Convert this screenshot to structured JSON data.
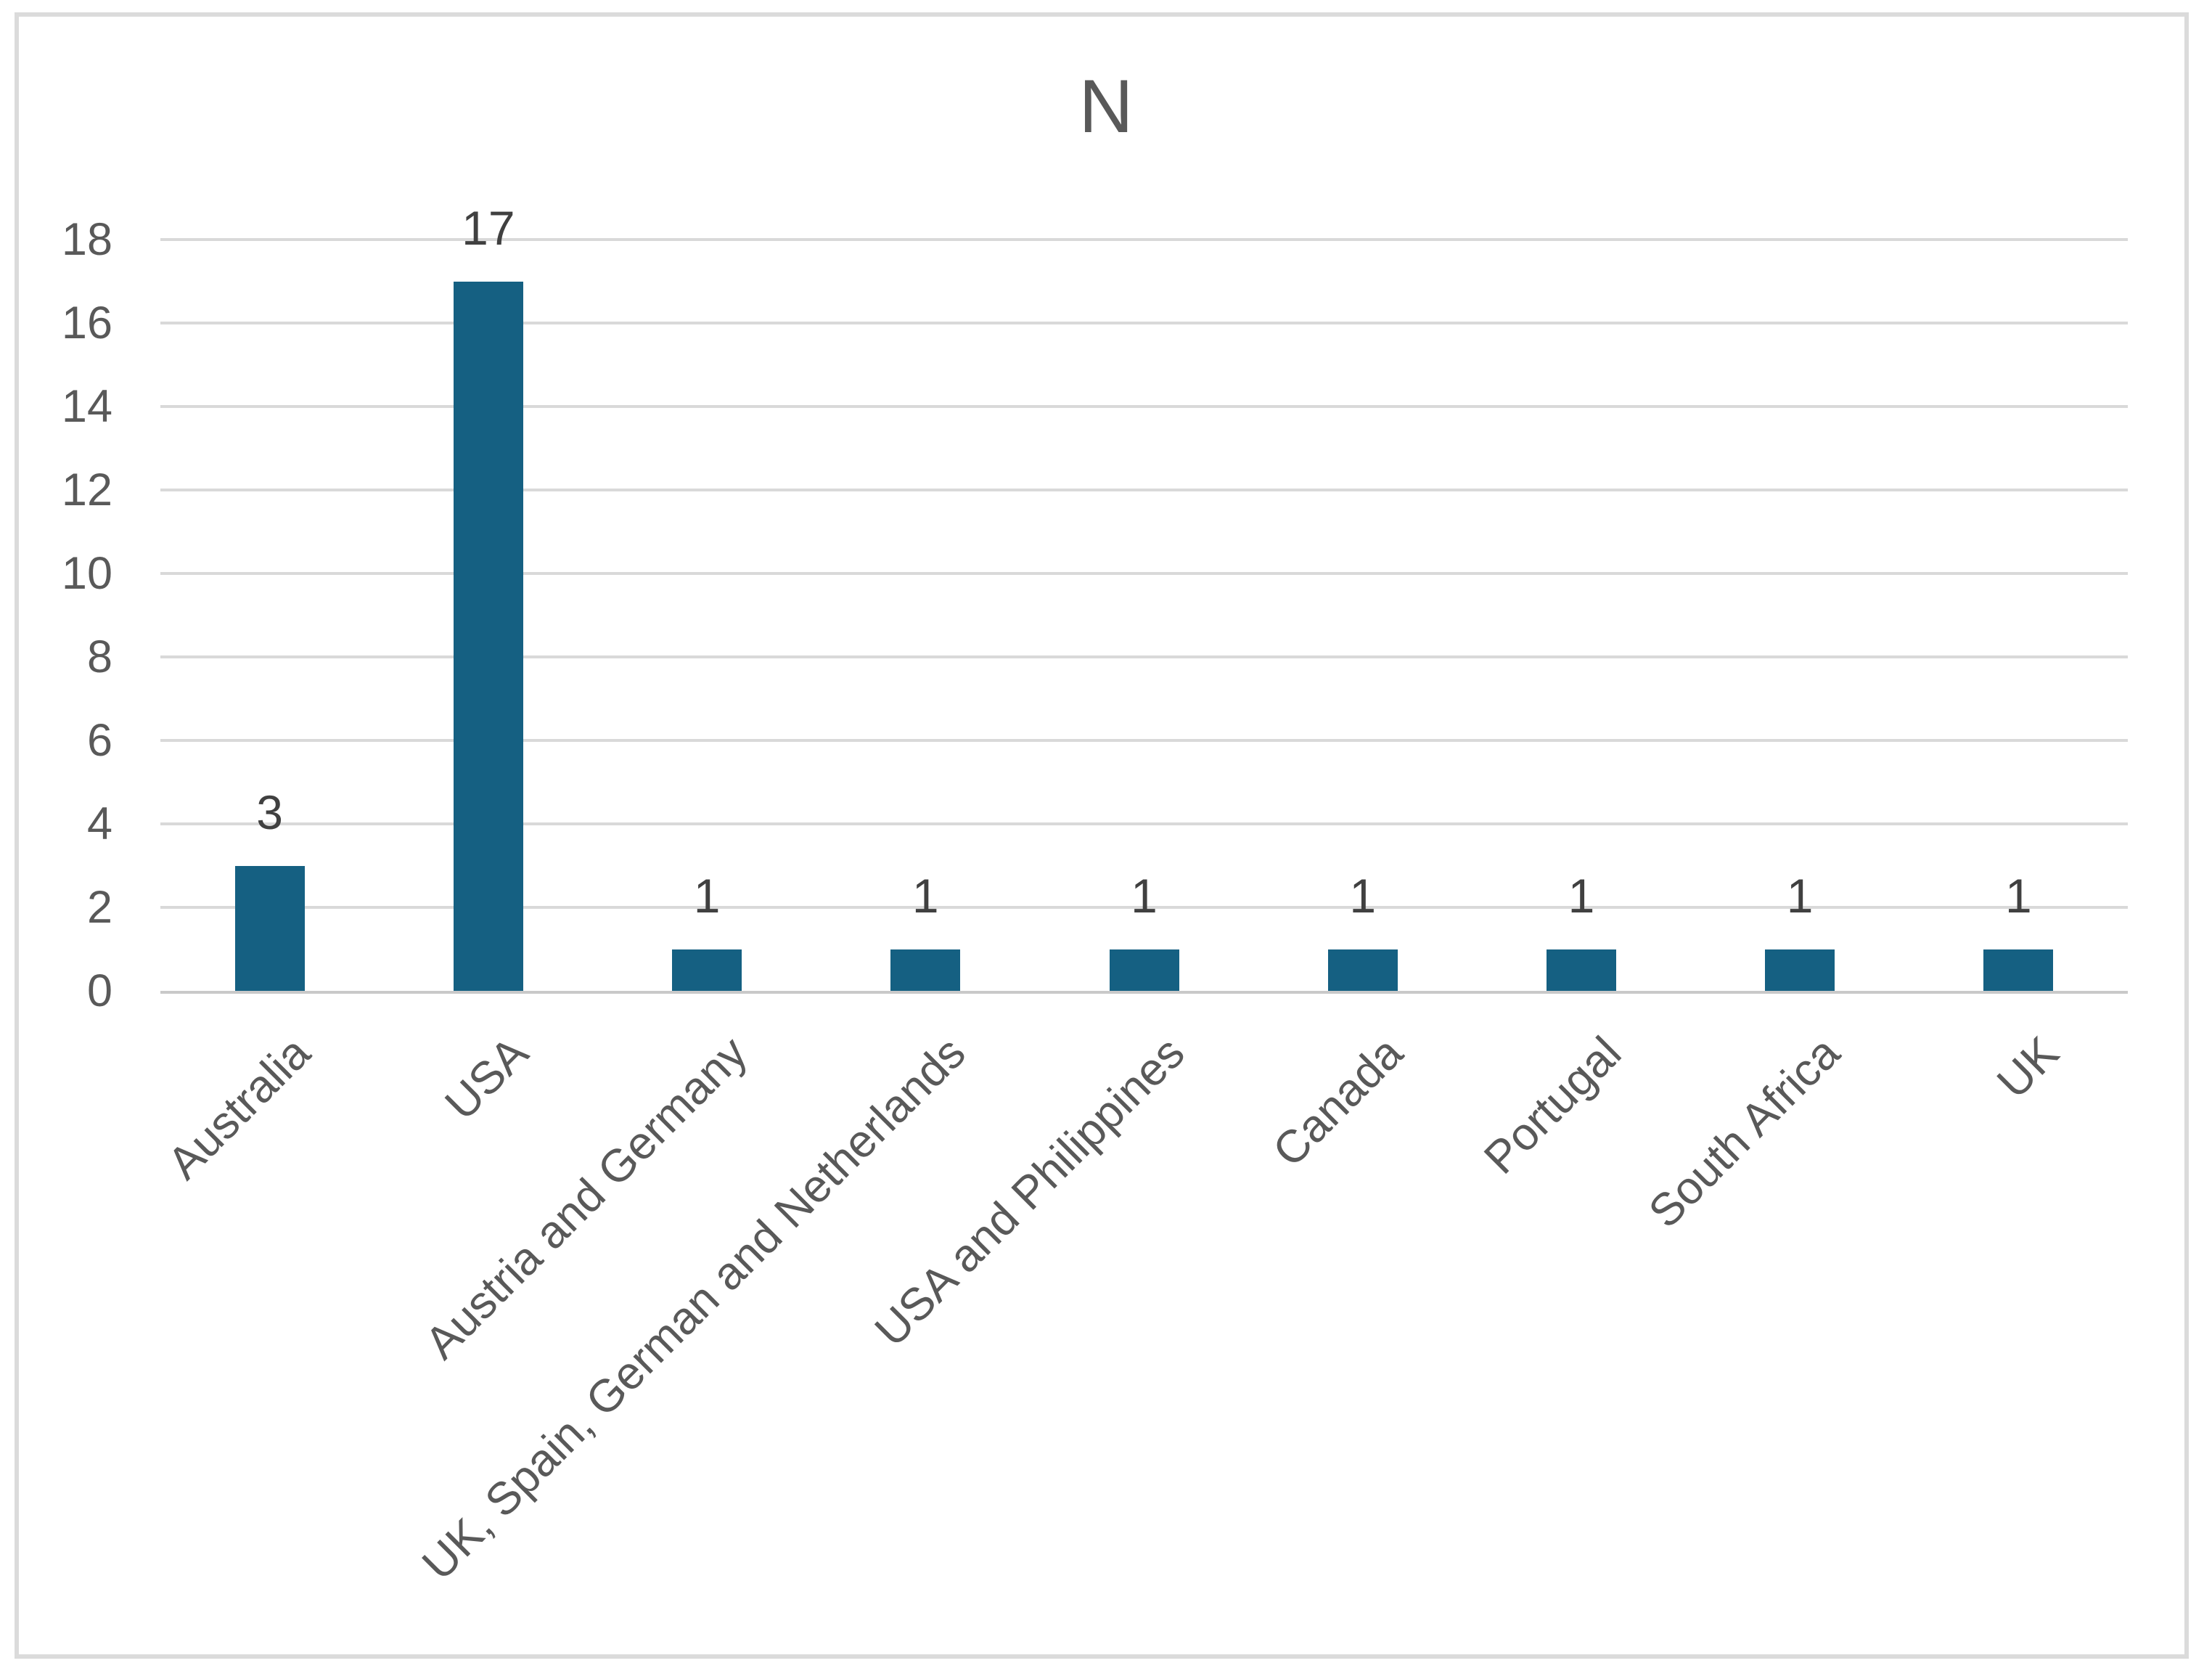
{
  "chart_data": {
    "type": "bar",
    "title": "N",
    "categories": [
      "Australia",
      "USA",
      "Austria and Germany",
      "UK, Spain, German and Netherlands",
      "USA and Philippines",
      "Canada",
      "Portugal",
      "South Africa",
      "UK"
    ],
    "values": [
      3,
      17,
      1,
      1,
      1,
      1,
      1,
      1,
      1
    ],
    "data_labels": [
      "3",
      "17",
      "1",
      "1",
      "1",
      "1",
      "1",
      "1",
      "1"
    ],
    "xlabel": "",
    "ylabel": "",
    "ylim": [
      0,
      18
    ],
    "y_ticks": [
      0,
      2,
      4,
      6,
      8,
      10,
      12,
      14,
      16,
      18
    ],
    "grid": "horizontal-only",
    "legend": "none",
    "bar_color": "#156082",
    "category_label_rotation_deg": 45
  },
  "colors": {
    "bar": "#156082",
    "gridline": "#D9D9D9",
    "axis_line": "#C9C9C9",
    "frame_border": "#DBDBDB",
    "title_text": "#595959",
    "axis_text": "#595959",
    "value_text": "#404040",
    "background": "#FFFFFF"
  }
}
